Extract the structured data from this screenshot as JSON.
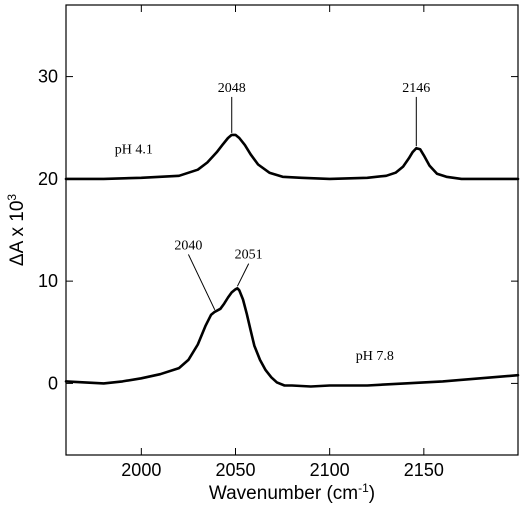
{
  "chart_data": {
    "type": "line",
    "xlabel": "Wavenumber (cm",
    "xlabel_sup": "-1",
    "xlabel_end": ")",
    "ylabel": "ΔA x 10",
    "ylabel_sup": "3",
    "xlim": [
      1960,
      2200
    ],
    "ylim": [
      -7,
      37
    ],
    "xticks": [
      2000,
      2050,
      2100,
      2150
    ],
    "yticks": [
      0,
      10,
      20,
      30
    ],
    "xtick_labels": [
      "2000",
      "2050",
      "2100",
      "2150"
    ],
    "ytick_labels": [
      "0",
      "10",
      "20",
      "30"
    ],
    "grid": false,
    "series": [
      {
        "name": "pH 4.1",
        "x": [
          1960,
          1980,
          2000,
          2020,
          2030,
          2035,
          2040,
          2043,
          2046,
          2048,
          2050,
          2052,
          2055,
          2058,
          2062,
          2068,
          2075,
          2085,
          2100,
          2120,
          2130,
          2135,
          2139,
          2142,
          2144,
          2146,
          2148,
          2150,
          2153,
          2157,
          2162,
          2170,
          2185,
          2200
        ],
        "y": [
          20.0,
          20.0,
          20.1,
          20.3,
          20.9,
          21.6,
          22.6,
          23.3,
          24.0,
          24.3,
          24.3,
          24.0,
          23.3,
          22.4,
          21.4,
          20.6,
          20.2,
          20.1,
          20.0,
          20.1,
          20.3,
          20.6,
          21.2,
          22.0,
          22.6,
          23.0,
          22.9,
          22.3,
          21.3,
          20.5,
          20.2,
          20.0,
          20.0,
          20.0
        ]
      },
      {
        "name": "pH 7.8",
        "x": [
          1960,
          1970,
          1980,
          1990,
          2000,
          2010,
          2020,
          2025,
          2030,
          2034,
          2037,
          2039,
          2040,
          2042,
          2044,
          2046,
          2048,
          2050,
          2051,
          2052,
          2054,
          2056,
          2058,
          2060,
          2063,
          2066,
          2069,
          2072,
          2076,
          2080,
          2090,
          2100,
          2120,
          2140,
          2160,
          2180,
          2200
        ],
        "y": [
          0.2,
          0.1,
          0.0,
          0.2,
          0.5,
          0.9,
          1.5,
          2.3,
          3.8,
          5.6,
          6.7,
          7.0,
          7.1,
          7.3,
          7.8,
          8.4,
          8.9,
          9.2,
          9.3,
          9.1,
          8.2,
          6.8,
          5.2,
          3.7,
          2.3,
          1.3,
          0.6,
          0.1,
          -0.2,
          -0.2,
          -0.3,
          -0.2,
          -0.2,
          0.0,
          0.2,
          0.5,
          0.8
        ]
      }
    ],
    "annotations": [
      {
        "text": "2048",
        "x": 2048,
        "y": 24.3,
        "label_y": 28.5,
        "align": "center"
      },
      {
        "text": "2146",
        "x": 2146,
        "y": 23.0,
        "label_y": 28.5,
        "align": "center"
      },
      {
        "text": "2040",
        "x": 2039,
        "y": 7.0,
        "label_x": 2025,
        "label_y": 13.1,
        "align": "center"
      },
      {
        "text": "2051",
        "x": 2051,
        "y": 9.3,
        "label_x": 2057,
        "label_y": 12.2,
        "align": "center"
      }
    ],
    "series_labels": [
      {
        "text": "pH 4.1",
        "x": 1996,
        "y": 22.5
      },
      {
        "text": "pH 7.8",
        "x": 2124,
        "y": 2.3
      }
    ]
  }
}
